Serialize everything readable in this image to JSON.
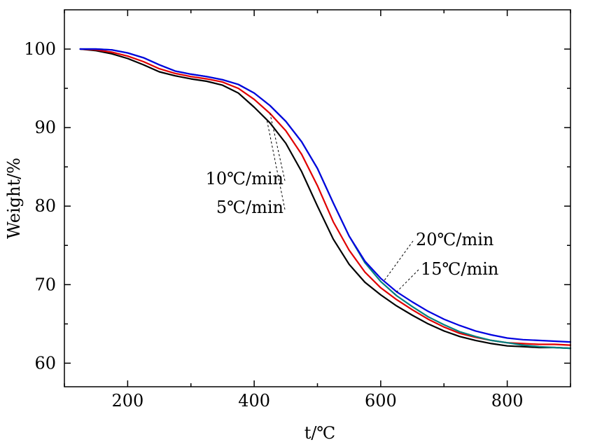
{
  "chart_data": {
    "type": "line",
    "xlabel": "t/℃",
    "ylabel": "Weight/%",
    "xlim": [
      100,
      900
    ],
    "ylim": [
      57,
      105
    ],
    "xticks": [
      200,
      400,
      600,
      800
    ],
    "yticks": [
      60,
      70,
      80,
      90,
      100
    ],
    "grid": false,
    "legend": "none",
    "series": [
      {
        "name": "5℃/min",
        "color": "#000000",
        "x": [
          125,
          150,
          175,
          200,
          225,
          250,
          275,
          300,
          325,
          350,
          375,
          400,
          425,
          450,
          475,
          500,
          525,
          550,
          575,
          600,
          625,
          650,
          675,
          700,
          725,
          750,
          775,
          800,
          825,
          850,
          875,
          900
        ],
        "y": [
          100,
          99.8,
          99.4,
          98.8,
          98.0,
          97.1,
          96.6,
          96.2,
          95.9,
          95.4,
          94.4,
          92.6,
          90.6,
          88.0,
          84.4,
          80.0,
          75.8,
          72.6,
          70.3,
          68.7,
          67.3,
          66.1,
          65.0,
          64.1,
          63.4,
          62.9,
          62.5,
          62.2,
          62.1,
          62.0,
          62.0,
          61.9
        ]
      },
      {
        "name": "10℃/min",
        "color": "#e00000",
        "x": [
          125,
          150,
          175,
          200,
          225,
          250,
          275,
          300,
          325,
          350,
          375,
          400,
          425,
          450,
          475,
          500,
          525,
          550,
          575,
          600,
          625,
          650,
          675,
          700,
          725,
          750,
          775,
          800,
          825,
          850,
          875,
          900
        ],
        "y": [
          100,
          99.9,
          99.6,
          99.1,
          98.4,
          97.5,
          96.9,
          96.5,
          96.2,
          95.8,
          95.0,
          93.6,
          91.8,
          89.6,
          86.6,
          82.6,
          78.0,
          74.4,
          71.6,
          69.6,
          68.1,
          66.8,
          65.6,
          64.6,
          63.8,
          63.3,
          62.9,
          62.6,
          62.5,
          62.4,
          62.4,
          62.3
        ]
      },
      {
        "name": "15℃/min",
        "color": "#008080",
        "x": [
          125,
          150,
          175,
          200,
          225,
          250,
          275,
          300,
          325,
          350,
          375,
          400,
          425,
          450,
          475,
          500,
          525,
          550,
          575,
          600,
          625,
          650,
          675,
          700,
          725,
          750,
          775,
          800,
          825,
          850,
          875,
          900
        ],
        "y": [
          100,
          100,
          99.9,
          99.5,
          98.9,
          98.0,
          97.2,
          96.8,
          96.5,
          96.1,
          95.5,
          94.4,
          92.8,
          90.8,
          88.2,
          84.8,
          80.4,
          76.2,
          72.8,
          70.4,
          68.6,
          67.2,
          65.9,
          64.9,
          64.0,
          63.4,
          62.9,
          62.6,
          62.3,
          62.1,
          62.0,
          61.9
        ]
      },
      {
        "name": "20℃/min",
        "color": "#0000e0",
        "x": [
          125,
          150,
          175,
          200,
          225,
          250,
          275,
          300,
          325,
          350,
          375,
          400,
          425,
          450,
          475,
          500,
          525,
          550,
          575,
          600,
          625,
          650,
          675,
          700,
          725,
          750,
          775,
          800,
          825,
          850,
          875,
          900
        ],
        "y": [
          100,
          100,
          99.9,
          99.5,
          98.9,
          98.0,
          97.2,
          96.8,
          96.5,
          96.1,
          95.5,
          94.4,
          92.8,
          90.8,
          88.2,
          84.8,
          80.4,
          76.2,
          73.0,
          70.8,
          69.1,
          67.8,
          66.6,
          65.6,
          64.8,
          64.1,
          63.6,
          63.2,
          63.0,
          62.9,
          62.8,
          62.7
        ]
      }
    ],
    "annotations": [
      {
        "text": "10℃/min",
        "series": "10℃/min",
        "at_x": 425
      },
      {
        "text": "5℃/min",
        "series": "5℃/min",
        "at_x": 420
      },
      {
        "text": "20℃/min",
        "series": "20℃/min",
        "at_x": 605
      },
      {
        "text": "15℃/min",
        "series": "15℃/min",
        "at_x": 622
      }
    ]
  }
}
